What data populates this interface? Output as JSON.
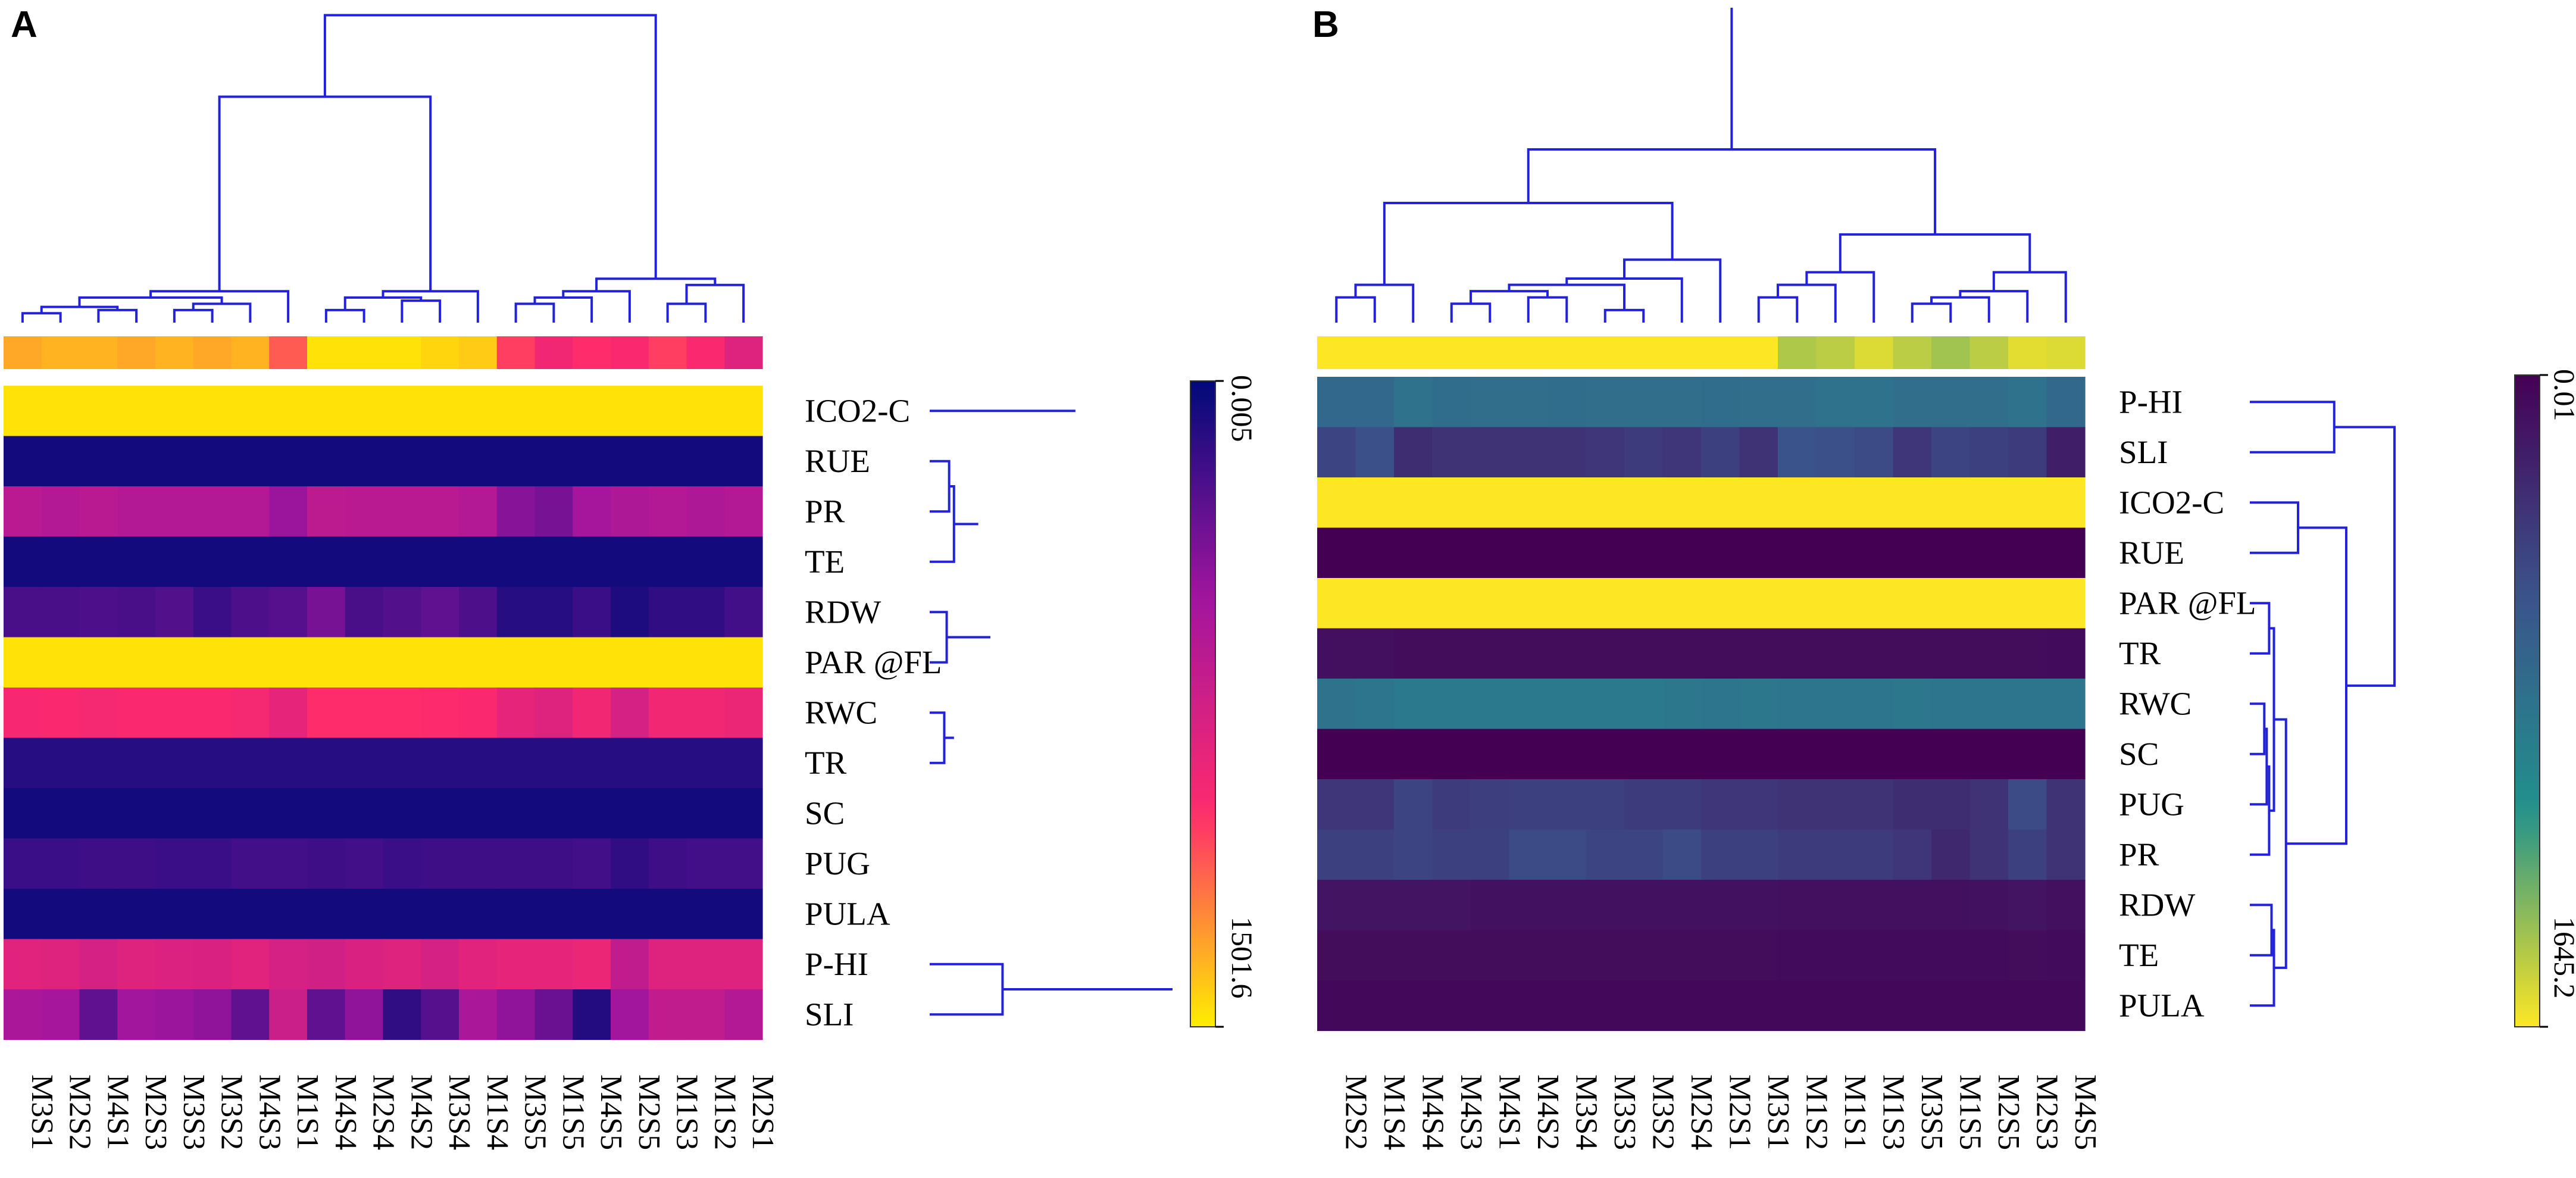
{
  "chart_data": [
    {
      "type": "heatmap",
      "panel": "A",
      "colormap": "plasma (yellow high → purple → navy low)",
      "colors": [
        "#ffee00",
        "#ff2a6d",
        "#a0159e",
        "#000a78"
      ],
      "columns": [
        "M3S1",
        "M2S2",
        "M4S1",
        "M2S3",
        "M3S3",
        "M3S2",
        "M4S3",
        "M1S1",
        "M4S4",
        "M2S4",
        "M4S2",
        "M3S4",
        "M1S4",
        "M3S5",
        "M1S5",
        "M4S5",
        "M2S5",
        "M1S3",
        "M1S2",
        "M2S1"
      ],
      "rows": [
        "ICO2-C",
        "RUE",
        "PR",
        "TE",
        "RDW",
        "PAR @FL",
        "RWC",
        "TR",
        "SC",
        "PUG",
        "PULA",
        "P-HI",
        "SLI"
      ],
      "annotation_bar": [
        0.12,
        0.1,
        0.1,
        0.12,
        0.1,
        0.12,
        0.1,
        0.25,
        0.02,
        0.02,
        0.02,
        0.04,
        0.06,
        0.3,
        0.38,
        0.33,
        0.35,
        0.3,
        0.35,
        0.45
      ],
      "values": [
        [
          0.02,
          0.02,
          0.02,
          0.02,
          0.02,
          0.02,
          0.02,
          0.02,
          0.02,
          0.02,
          0.02,
          0.02,
          0.02,
          0.02,
          0.02,
          0.02,
          0.02,
          0.02,
          0.02,
          0.02
        ],
        [
          0.96,
          0.96,
          0.96,
          0.96,
          0.96,
          0.96,
          0.96,
          0.96,
          0.96,
          0.96,
          0.96,
          0.96,
          0.96,
          0.96,
          0.96,
          0.96,
          0.96,
          0.96,
          0.96,
          0.96
        ],
        [
          0.58,
          0.6,
          0.58,
          0.6,
          0.6,
          0.6,
          0.6,
          0.68,
          0.57,
          0.58,
          0.58,
          0.58,
          0.6,
          0.72,
          0.75,
          0.65,
          0.62,
          0.6,
          0.62,
          0.6
        ],
        [
          0.96,
          0.96,
          0.96,
          0.96,
          0.96,
          0.96,
          0.96,
          0.96,
          0.96,
          0.96,
          0.96,
          0.96,
          0.96,
          0.96,
          0.96,
          0.96,
          0.96,
          0.96,
          0.96,
          0.96
        ],
        [
          0.85,
          0.85,
          0.84,
          0.85,
          0.83,
          0.88,
          0.84,
          0.82,
          0.75,
          0.85,
          0.83,
          0.8,
          0.84,
          0.92,
          0.92,
          0.88,
          0.94,
          0.9,
          0.9,
          0.86
        ],
        [
          0.02,
          0.02,
          0.02,
          0.02,
          0.02,
          0.02,
          0.02,
          0.02,
          0.02,
          0.02,
          0.02,
          0.02,
          0.02,
          0.02,
          0.02,
          0.02,
          0.02,
          0.02,
          0.02,
          0.02
        ],
        [
          0.36,
          0.35,
          0.37,
          0.35,
          0.35,
          0.35,
          0.37,
          0.42,
          0.33,
          0.33,
          0.33,
          0.34,
          0.35,
          0.42,
          0.45,
          0.38,
          0.48,
          0.38,
          0.38,
          0.4
        ],
        [
          0.92,
          0.92,
          0.92,
          0.92,
          0.92,
          0.92,
          0.92,
          0.92,
          0.92,
          0.92,
          0.92,
          0.92,
          0.92,
          0.92,
          0.92,
          0.92,
          0.92,
          0.92,
          0.92,
          0.92
        ],
        [
          0.96,
          0.96,
          0.96,
          0.96,
          0.96,
          0.96,
          0.96,
          0.96,
          0.96,
          0.96,
          0.96,
          0.96,
          0.96,
          0.96,
          0.96,
          0.96,
          0.96,
          0.96,
          0.96,
          0.96
        ],
        [
          0.88,
          0.88,
          0.87,
          0.87,
          0.88,
          0.88,
          0.86,
          0.86,
          0.87,
          0.86,
          0.88,
          0.87,
          0.87,
          0.87,
          0.87,
          0.86,
          0.9,
          0.87,
          0.86,
          0.86
        ],
        [
          0.96,
          0.96,
          0.96,
          0.96,
          0.96,
          0.96,
          0.96,
          0.96,
          0.96,
          0.96,
          0.96,
          0.96,
          0.96,
          0.96,
          0.96,
          0.96,
          0.96,
          0.96,
          0.96,
          0.96
        ],
        [
          0.44,
          0.45,
          0.48,
          0.45,
          0.46,
          0.47,
          0.44,
          0.48,
          0.5,
          0.47,
          0.45,
          0.48,
          0.44,
          0.42,
          0.42,
          0.4,
          0.55,
          0.45,
          0.45,
          0.45
        ],
        [
          0.63,
          0.65,
          0.8,
          0.66,
          0.68,
          0.7,
          0.8,
          0.52,
          0.8,
          0.7,
          0.9,
          0.82,
          0.63,
          0.7,
          0.78,
          0.93,
          0.66,
          0.55,
          0.55,
          0.6
        ]
      ],
      "colorbar": {
        "top_label": "0.005",
        "bottom_label": "1501.6"
      },
      "row_dendrogram_order": [
        "ICO2-C",
        "RUE",
        "PR",
        "TE",
        "RDW",
        "PAR @FL",
        "RWC",
        "TR",
        "SC",
        "PUG",
        "PULA",
        "P-HI",
        "SLI"
      ]
    },
    {
      "type": "heatmap",
      "panel": "B",
      "colormap": "viridis (yellow high → teal → dark purple low)",
      "colors": [
        "#fde725",
        "#21918c",
        "#3b528b",
        "#440154"
      ],
      "columns": [
        "M2S2",
        "M1S4",
        "M4S4",
        "M4S3",
        "M4S1",
        "M4S2",
        "M3S4",
        "M3S3",
        "M3S2",
        "M2S4",
        "M2S1",
        "M3S1",
        "M1S2",
        "M1S1",
        "M1S3",
        "M3S5",
        "M1S5",
        "M2S5",
        "M2S3",
        "M4S5"
      ],
      "rows": [
        "P-HI",
        "SLI",
        "ICO2-C",
        "RUE",
        "PAR @FL",
        "TR",
        "RWC",
        "SC",
        "PUG",
        "PR",
        "RDW",
        "TE",
        "PULA"
      ],
      "annotation_bar": [
        0.0,
        0.0,
        0.0,
        0.0,
        0.0,
        0.0,
        0.0,
        0.0,
        0.0,
        0.0,
        0.0,
        0.0,
        0.12,
        0.1,
        0.05,
        0.1,
        0.14,
        0.1,
        0.04,
        0.05
      ],
      "values": [
        [
          0.55,
          0.55,
          0.5,
          0.53,
          0.52,
          0.52,
          0.53,
          0.52,
          0.52,
          0.52,
          0.53,
          0.52,
          0.52,
          0.5,
          0.5,
          0.52,
          0.52,
          0.52,
          0.5,
          0.55
        ],
        [
          0.72,
          0.68,
          0.82,
          0.8,
          0.8,
          0.8,
          0.8,
          0.78,
          0.76,
          0.78,
          0.74,
          0.8,
          0.66,
          0.68,
          0.7,
          0.78,
          0.72,
          0.74,
          0.76,
          0.88
        ],
        [
          0.0,
          0.0,
          0.0,
          0.0,
          0.0,
          0.0,
          0.0,
          0.0,
          0.0,
          0.0,
          0.0,
          0.0,
          0.0,
          0.0,
          0.0,
          0.0,
          0.0,
          0.0,
          0.0,
          0.0
        ],
        [
          1.0,
          1.0,
          1.0,
          1.0,
          1.0,
          1.0,
          1.0,
          1.0,
          1.0,
          1.0,
          1.0,
          1.0,
          1.0,
          1.0,
          1.0,
          1.0,
          1.0,
          1.0,
          1.0,
          1.0
        ],
        [
          0.0,
          0.0,
          0.0,
          0.0,
          0.0,
          0.0,
          0.0,
          0.0,
          0.0,
          0.0,
          0.0,
          0.0,
          0.0,
          0.0,
          0.0,
          0.0,
          0.0,
          0.0,
          0.0,
          0.0
        ],
        [
          0.94,
          0.94,
          0.95,
          0.95,
          0.95,
          0.95,
          0.95,
          0.95,
          0.95,
          0.95,
          0.95,
          0.95,
          0.95,
          0.95,
          0.95,
          0.95,
          0.95,
          0.95,
          0.95,
          0.96
        ],
        [
          0.5,
          0.48,
          0.46,
          0.46,
          0.46,
          0.46,
          0.46,
          0.46,
          0.46,
          0.47,
          0.48,
          0.47,
          0.48,
          0.48,
          0.48,
          0.47,
          0.48,
          0.48,
          0.48,
          0.48
        ],
        [
          1.0,
          1.0,
          1.0,
          1.0,
          1.0,
          1.0,
          1.0,
          1.0,
          1.0,
          1.0,
          1.0,
          1.0,
          1.0,
          1.0,
          1.0,
          1.0,
          1.0,
          1.0,
          1.0,
          1.0
        ],
        [
          0.78,
          0.78,
          0.72,
          0.76,
          0.75,
          0.74,
          0.74,
          0.74,
          0.76,
          0.76,
          0.78,
          0.78,
          0.8,
          0.8,
          0.8,
          0.82,
          0.82,
          0.8,
          0.7,
          0.8
        ],
        [
          0.74,
          0.74,
          0.72,
          0.74,
          0.74,
          0.7,
          0.7,
          0.72,
          0.72,
          0.7,
          0.74,
          0.74,
          0.76,
          0.76,
          0.76,
          0.78,
          0.84,
          0.8,
          0.74,
          0.8
        ],
        [
          0.92,
          0.92,
          0.92,
          0.92,
          0.93,
          0.93,
          0.93,
          0.93,
          0.93,
          0.93,
          0.93,
          0.93,
          0.94,
          0.94,
          0.94,
          0.94,
          0.94,
          0.93,
          0.92,
          0.94
        ],
        [
          0.95,
          0.95,
          0.95,
          0.95,
          0.95,
          0.95,
          0.95,
          0.95,
          0.95,
          0.95,
          0.95,
          0.95,
          0.96,
          0.96,
          0.96,
          0.96,
          0.96,
          0.96,
          0.95,
          0.96
        ],
        [
          0.97,
          0.97,
          0.97,
          0.97,
          0.97,
          0.97,
          0.97,
          0.97,
          0.97,
          0.97,
          0.97,
          0.97,
          0.97,
          0.97,
          0.97,
          0.97,
          0.97,
          0.97,
          0.97,
          0.97
        ]
      ],
      "colorbar": {
        "top_label": "0.01",
        "bottom_label": "1645.2"
      },
      "row_dendrogram_order": [
        "P-HI",
        "SLI",
        "ICO2-C",
        "RUE",
        "PAR @FL",
        "TR",
        "RWC",
        "SC",
        "PUG",
        "PR",
        "RDW",
        "TE",
        "PULA"
      ]
    }
  ]
}
